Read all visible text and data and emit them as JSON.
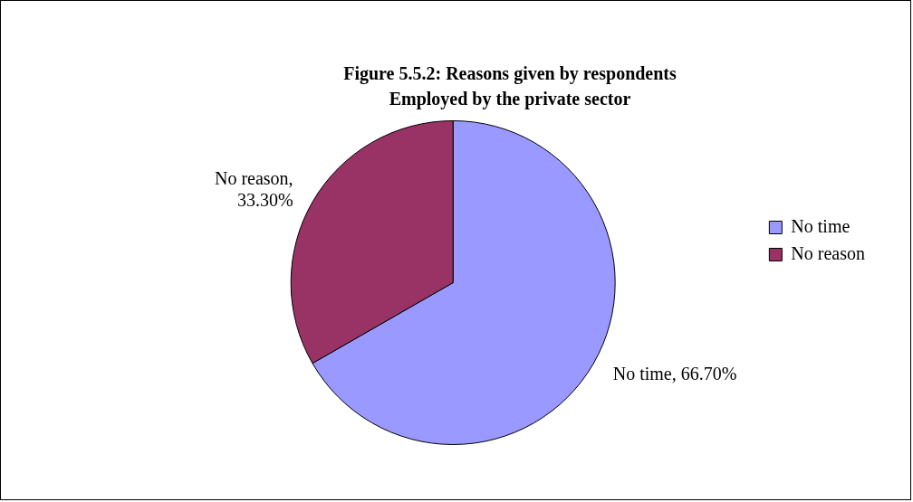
{
  "chart_data": {
    "type": "pie",
    "title": "Figure 5.5.2: Reasons given by respondents",
    "subtitle": "Employed by the private sector",
    "categories": [
      "No time",
      "No reason"
    ],
    "values": [
      66.7,
      33.3
    ],
    "colors": [
      "#9999ff",
      "#993366"
    ],
    "value_labels": [
      "No time, 66.70%",
      "No reason, 33.30%"
    ],
    "legend": "right"
  }
}
